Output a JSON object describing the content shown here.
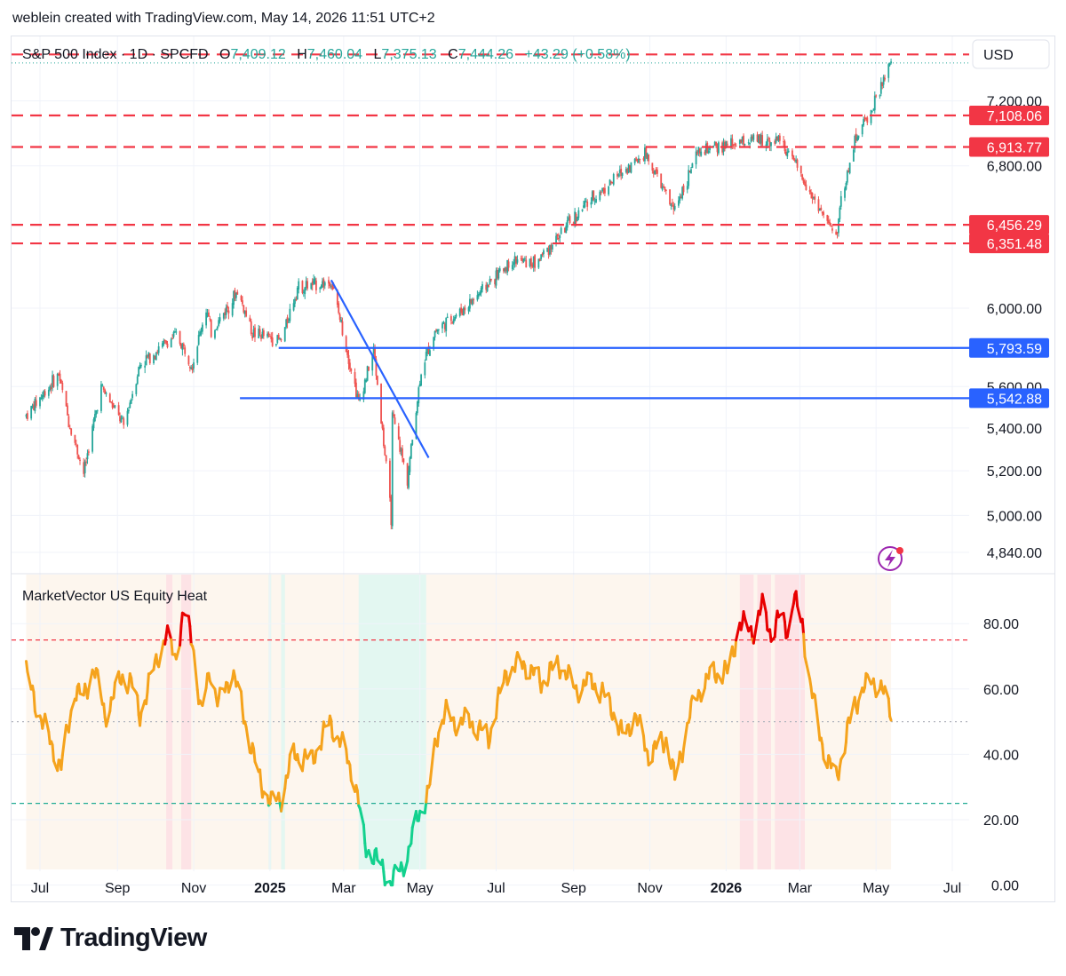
{
  "header": {
    "attribution": "weblein created with TradingView.com, May 14, 2026 11:51 UTC+2"
  },
  "legend": {
    "symbol": "S&P 500 Index · 1D · SPCFD",
    "open_label": "O",
    "open": "7,409.12",
    "high_label": "H",
    "high": "7,460.04",
    "low_label": "L",
    "low": "7,375.13",
    "close_label": "C",
    "close": "7,444.26",
    "change": "+43.29 (+0.58%)"
  },
  "currency": "USD",
  "indicator": {
    "name": "MarketVector US Equity Heat"
  },
  "logo": {
    "text": "TradingView"
  },
  "colors": {
    "up": "#26a69a",
    "down": "#ef5350",
    "support_red": "#f23645",
    "support_blue": "#2962ff",
    "heat_orange": "#f5a31d",
    "heat_red": "#e80000",
    "heat_green": "#13d18e",
    "bg_orange": "#fdf6ee",
    "bg_red": "#fde3e6",
    "bg_green": "#e3f7f1"
  },
  "chart_data": [
    {
      "type": "candlestick",
      "title": "S&P 500 Index · 1D · SPCFD",
      "currency": "USD",
      "x_axis": {
        "ticks": [
          "Jul",
          "Sep",
          "Nov",
          "2025",
          "Mar",
          "May",
          "Jul",
          "Sep",
          "Nov",
          "2026",
          "Mar",
          "May",
          "Jul"
        ]
      },
      "y_axis": {
        "scale": "log",
        "range": [
          4750,
          7620
        ],
        "ticks": [
          "4,840.00",
          "5,000.00",
          "5,200.00",
          "5,400.00",
          "5,600.00",
          "6,000.00",
          "6,800.00",
          "7,200.00"
        ]
      },
      "price_path": [
        [
          "2024-06-20",
          5460
        ],
        [
          "2024-07-16",
          5660
        ],
        [
          "2024-07-24",
          5430
        ],
        [
          "2024-08-05",
          5190
        ],
        [
          "2024-08-19",
          5600
        ],
        [
          "2024-09-06",
          5410
        ],
        [
          "2024-09-19",
          5710
        ],
        [
          "2024-10-18",
          5860
        ],
        [
          "2024-10-31",
          5710
        ],
        [
          "2024-11-11",
          6000
        ],
        [
          "2024-11-15",
          5870
        ],
        [
          "2024-12-06",
          6090
        ],
        [
          "2024-12-18",
          5870
        ],
        [
          "2025-01-10",
          5830
        ],
        [
          "2025-01-23",
          6110
        ],
        [
          "2025-02-19",
          6140
        ],
        [
          "2025-03-13",
          5520
        ],
        [
          "2025-03-25",
          5780
        ],
        [
          "2025-04-08",
          4990
        ],
        [
          "2025-04-09",
          5450
        ],
        [
          "2025-04-21",
          5160
        ],
        [
          "2025-05-02",
          5680
        ],
        [
          "2025-05-13",
          5880
        ],
        [
          "2025-06-06",
          6000
        ],
        [
          "2025-07-14",
          6260
        ],
        [
          "2025-08-01",
          6240
        ],
        [
          "2025-09-12",
          6580
        ],
        [
          "2025-10-28",
          6880
        ],
        [
          "2025-11-20",
          6540
        ],
        [
          "2025-12-10",
          6880
        ],
        [
          "2026-01-16",
          6950
        ],
        [
          "2026-02-13",
          6960
        ],
        [
          "2026-03-30",
          6380
        ],
        [
          "2026-04-02",
          6560
        ],
        [
          "2026-04-15",
          6980
        ],
        [
          "2026-04-28",
          7150
        ],
        [
          "2026-05-13",
          7444
        ]
      ],
      "annotations": [
        {
          "kind": "horizontal",
          "color": "red",
          "value": 7108.06,
          "label": "7,108.06"
        },
        {
          "kind": "horizontal",
          "color": "red",
          "value": 6913.77,
          "label": "6,913.77"
        },
        {
          "kind": "horizontal",
          "color": "red",
          "value": 6456.29,
          "label": "6,456.29"
        },
        {
          "kind": "horizontal",
          "color": "red",
          "value": 6351.48,
          "label": "6,351.48"
        },
        {
          "kind": "horizontal",
          "color": "red",
          "value": 7500
        },
        {
          "kind": "horizontal",
          "color": "blue",
          "value": 5793.59,
          "label": "5,793.59",
          "from": "2025-01-08"
        },
        {
          "kind": "horizontal",
          "color": "blue",
          "value": 5542.88,
          "label": "5,542.88",
          "from": "2024-12-08"
        },
        {
          "kind": "trendline",
          "color": "blue",
          "from": [
            "2025-02-19",
            6150
          ],
          "to": [
            "2025-05-08",
            5260
          ]
        }
      ]
    },
    {
      "type": "line",
      "title": "MarketVector US Equity Heat",
      "y_axis": {
        "range": [
          -5,
          95
        ],
        "ticks": [
          "0.00",
          "20.00",
          "40.00",
          "60.00",
          "80.00"
        ]
      },
      "levels": [
        {
          "value": 75,
          "color": "red",
          "style": "dashed"
        },
        {
          "value": 50,
          "color": "grey",
          "style": "dotted"
        },
        {
          "value": 25,
          "color": "green",
          "style": "dashed"
        }
      ],
      "series": [
        {
          "values": [
            [
              "2024-06-20",
              65
            ],
            [
              "2024-06-27",
              56
            ],
            [
              "2024-07-08",
              45
            ],
            [
              "2024-07-18",
              36
            ],
            [
              "2024-07-29",
              60
            ],
            [
              "2024-08-05",
              57
            ],
            [
              "2024-08-13",
              67
            ],
            [
              "2024-08-22",
              52
            ],
            [
              "2024-09-05",
              64
            ],
            [
              "2024-09-12",
              62
            ],
            [
              "2024-09-19",
              52
            ],
            [
              "2024-10-03",
              70
            ],
            [
              "2024-10-10",
              76
            ],
            [
              "2024-10-17",
              70
            ],
            [
              "2024-10-24",
              83
            ],
            [
              "2024-10-31",
              75
            ],
            [
              "2024-11-07",
              52
            ],
            [
              "2024-11-14",
              66
            ],
            [
              "2024-11-21",
              55
            ],
            [
              "2024-12-02",
              66
            ],
            [
              "2024-12-11",
              52
            ],
            [
              "2024-12-23",
              33
            ],
            [
              "2025-01-02",
              25
            ],
            [
              "2025-01-10",
              27
            ],
            [
              "2025-01-20",
              40
            ],
            [
              "2025-02-03",
              38
            ],
            [
              "2025-02-18",
              50
            ],
            [
              "2025-03-03",
              40
            ],
            [
              "2025-03-10",
              32
            ],
            [
              "2025-03-18",
              12
            ],
            [
              "2025-03-25",
              9
            ],
            [
              "2025-04-01",
              5
            ],
            [
              "2025-04-08",
              0
            ],
            [
              "2025-04-15",
              5
            ],
            [
              "2025-04-22",
              10
            ],
            [
              "2025-04-30",
              22
            ],
            [
              "2025-05-08",
              28
            ],
            [
              "2025-05-14",
              45
            ],
            [
              "2025-05-21",
              53
            ],
            [
              "2025-05-28",
              50
            ],
            [
              "2025-06-11",
              50
            ],
            [
              "2025-06-25",
              45
            ],
            [
              "2025-07-09",
              65
            ],
            [
              "2025-07-23",
              68
            ],
            [
              "2025-08-06",
              62
            ],
            [
              "2025-08-20",
              68
            ],
            [
              "2025-09-03",
              60
            ],
            [
              "2025-09-17",
              62
            ],
            [
              "2025-10-01",
              55
            ],
            [
              "2025-10-10",
              45
            ],
            [
              "2025-10-20",
              52
            ],
            [
              "2025-10-31",
              40
            ],
            [
              "2025-11-07",
              42
            ],
            [
              "2025-11-14",
              45
            ],
            [
              "2025-11-21",
              32
            ],
            [
              "2025-12-03",
              52
            ],
            [
              "2025-12-11",
              60
            ],
            [
              "2025-12-22",
              65
            ],
            [
              "2026-01-02",
              65
            ],
            [
              "2026-01-12",
              80
            ],
            [
              "2026-01-23",
              78
            ],
            [
              "2026-01-30",
              85
            ],
            [
              "2026-02-06",
              77
            ],
            [
              "2026-02-13",
              82
            ],
            [
              "2026-02-20",
              78
            ],
            [
              "2026-02-24",
              88
            ],
            [
              "2026-03-03",
              80
            ],
            [
              "2026-03-09",
              62
            ],
            [
              "2026-03-16",
              48
            ],
            [
              "2026-03-23",
              38
            ],
            [
              "2026-03-30",
              33
            ],
            [
              "2026-04-06",
              43
            ],
            [
              "2026-04-13",
              55
            ],
            [
              "2026-04-21",
              60
            ],
            [
              "2026-04-28",
              63
            ],
            [
              "2026-05-05",
              60
            ],
            [
              "2026-05-13",
              53
            ]
          ]
        }
      ]
    }
  ]
}
